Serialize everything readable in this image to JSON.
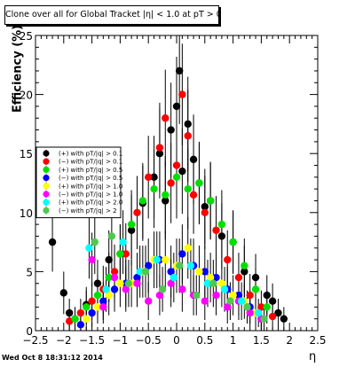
{
  "chart_data": {
    "type": "scatter",
    "title": "Clone  over all for Global Tracket |η| < 1.0 at pT > 0.11",
    "xlabel": "η",
    "ylabel": "Efficiency (%)",
    "xlim": [
      -2.5,
      2.5
    ],
    "ylim": [
      0,
      25
    ],
    "grid": false,
    "legend_position": "left-middle",
    "x_ticks": [
      -2.5,
      -2,
      -1.5,
      -1,
      -0.5,
      0,
      0.5,
      1,
      1.5,
      2,
      2.5
    ],
    "x_tick_labels": [
      "−2.5",
      "−2",
      "−1.5",
      "−1",
      "−0.5",
      "0",
      "0.5",
      "1",
      "1.5",
      "2",
      "2.5"
    ],
    "y_ticks": [
      0,
      5,
      10,
      15,
      20,
      25
    ],
    "y_tick_labels": [
      "0",
      "5",
      "10",
      "15",
      "20",
      "25"
    ],
    "datestamp": "Wed Oct  8 18:31:12 2014",
    "series": [
      {
        "name": "(+) with pT/|q| > 0.1",
        "color": "#000000",
        "x": [
          -2.2,
          -2.0,
          -1.9,
          -1.8,
          -1.6,
          -1.4,
          -1.2,
          -1.0,
          -0.8,
          -0.6,
          -0.4,
          -0.3,
          -0.2,
          -0.1,
          0.0,
          0.05,
          0.1,
          0.2,
          0.3,
          0.4,
          0.5,
          0.6,
          0.8,
          1.0,
          1.2,
          1.4,
          1.6,
          1.7,
          1.8,
          1.9
        ],
        "y": [
          7.5,
          3.2,
          1.5,
          1.0,
          2.2,
          4.0,
          6.0,
          6.5,
          8.5,
          10.8,
          13.0,
          15.0,
          11.0,
          17.0,
          19.0,
          22.0,
          13.5,
          17.5,
          14.5,
          12.5,
          10.5,
          11.0,
          8.0,
          7.5,
          5.0,
          4.5,
          3.0,
          2.5,
          1.5,
          1.0
        ],
        "yerr": [
          2.5,
          1.8,
          1.2,
          1.0,
          1.5,
          2.0,
          2.5,
          2.5,
          3.0,
          3.2,
          3.5,
          3.8,
          3.3,
          4.0,
          4.2,
          4.5,
          3.6,
          4.0,
          3.8,
          3.5,
          3.2,
          3.3,
          2.8,
          2.7,
          2.2,
          2.0,
          1.7,
          1.5,
          1.2,
          1.0
        ]
      },
      {
        "name": "(−) with pT/|q| > 0.1",
        "color": "#ff0000",
        "x": [
          -1.9,
          -1.7,
          -1.5,
          -1.3,
          -1.1,
          -0.9,
          -0.7,
          -0.5,
          -0.3,
          -0.2,
          -0.1,
          0.0,
          0.1,
          0.2,
          0.3,
          0.5,
          0.7,
          0.9,
          1.1,
          1.3,
          1.5,
          1.7
        ],
        "y": [
          0.8,
          1.5,
          2.5,
          3.5,
          5.0,
          6.5,
          10.0,
          13.0,
          15.5,
          18.0,
          12.5,
          14.0,
          20.0,
          16.5,
          11.5,
          10.0,
          8.5,
          6.0,
          4.5,
          3.0,
          2.0,
          1.2
        ],
        "yerr": [
          0.9,
          1.2,
          1.6,
          2.0,
          2.3,
          2.6,
          3.1,
          3.5,
          3.8,
          4.1,
          3.4,
          3.6,
          4.3,
          3.9,
          3.3,
          3.1,
          2.9,
          2.5,
          2.1,
          1.8,
          1.4,
          1.1
        ]
      },
      {
        "name": "(+) with pT/|q| > 0.5",
        "color": "#00e000",
        "x": [
          -1.8,
          -1.6,
          -1.4,
          -1.2,
          -1.0,
          -0.8,
          -0.6,
          -0.4,
          -0.2,
          0.0,
          0.2,
          0.4,
          0.6,
          0.8,
          1.0,
          1.2,
          1.4,
          1.6
        ],
        "y": [
          1.0,
          2.0,
          3.0,
          4.5,
          6.5,
          9.0,
          11.0,
          12.0,
          11.5,
          13.0,
          12.0,
          12.5,
          11.0,
          9.0,
          7.5,
          5.5,
          3.5,
          2.0
        ],
        "yerr": [
          1.0,
          1.4,
          1.7,
          2.1,
          2.5,
          2.9,
          3.2,
          3.3,
          3.3,
          3.5,
          3.4,
          3.4,
          3.2,
          2.9,
          2.6,
          2.3,
          1.8,
          1.4
        ]
      },
      {
        "name": "(−) with pT/|q| > 0.5",
        "color": "#0000ff",
        "x": [
          -1.7,
          -1.5,
          -1.3,
          -1.1,
          -0.9,
          -0.7,
          -0.5,
          -0.3,
          -0.1,
          0.1,
          0.3,
          0.5,
          0.7,
          0.9,
          1.1,
          1.3,
          1.5
        ],
        "y": [
          0.5,
          1.5,
          2.5,
          3.5,
          4.0,
          4.5,
          5.5,
          6.0,
          5.0,
          6.5,
          5.5,
          5.0,
          4.5,
          3.5,
          3.0,
          2.0,
          1.0
        ],
        "yerr": [
          0.8,
          1.2,
          1.6,
          1.9,
          2.0,
          2.1,
          2.3,
          2.4,
          2.2,
          2.5,
          2.3,
          2.2,
          2.1,
          1.9,
          1.7,
          1.4,
          1.0
        ]
      },
      {
        "name": "(+) with pT/|q| > 1.0",
        "color": "#ffff00",
        "x": [
          -1.6,
          -1.4,
          -1.2,
          -1.0,
          -0.8,
          -0.6,
          -0.4,
          -0.2,
          0.0,
          0.2,
          0.4,
          0.6,
          0.8,
          1.0,
          1.2,
          1.4
        ],
        "y": [
          1.0,
          2.0,
          3.0,
          4.0,
          4.0,
          5.0,
          6.0,
          6.0,
          5.5,
          7.0,
          5.0,
          4.5,
          4.0,
          3.0,
          2.5,
          1.5
        ],
        "yerr": [
          1.0,
          1.4,
          1.7,
          2.0,
          2.0,
          2.2,
          2.4,
          2.4,
          2.3,
          2.6,
          2.2,
          2.1,
          2.0,
          1.7,
          1.5,
          1.2
        ]
      },
      {
        "name": "(−) with pT/|q| > 1.0",
        "color": "#ff00ff",
        "x": [
          -1.5,
          -1.3,
          -1.1,
          -0.9,
          -0.7,
          -0.5,
          -0.3,
          -0.1,
          0.1,
          0.3,
          0.5,
          0.7,
          0.9,
          1.1,
          1.3,
          1.5
        ],
        "y": [
          6.0,
          2.0,
          4.5,
          3.5,
          4.0,
          2.5,
          3.0,
          4.0,
          3.5,
          3.0,
          2.5,
          3.0,
          2.0,
          2.5,
          1.5,
          1.0
        ],
        "yerr": [
          2.3,
          1.4,
          2.1,
          1.9,
          2.0,
          1.6,
          1.7,
          2.0,
          1.9,
          1.7,
          1.6,
          1.7,
          1.4,
          1.6,
          1.2,
          1.0
        ]
      },
      {
        "name": "(+) with pT/|q| > 2.0",
        "color": "#00ffff",
        "x": [
          -1.55,
          -1.25,
          -0.95,
          -0.65,
          -0.35,
          -0.05,
          0.25,
          0.55,
          0.85,
          1.15,
          1.45
        ],
        "y": [
          7.0,
          3.5,
          7.5,
          5.0,
          6.0,
          4.5,
          5.5,
          4.0,
          3.5,
          2.5,
          1.5
        ],
        "yerr": [
          2.6,
          1.9,
          2.7,
          2.2,
          2.4,
          2.1,
          2.3,
          2.0,
          1.9,
          1.6,
          1.2
        ]
      },
      {
        "name": "(−) with pT/|q| > 2",
        "color": "#50c850",
        "x": [
          -1.45,
          -1.15,
          -0.85,
          -0.55,
          -0.25,
          0.05,
          0.35,
          0.65,
          0.95,
          1.25,
          1.55
        ],
        "y": [
          7.5,
          8.0,
          4.0,
          5.0,
          3.5,
          5.5,
          3.0,
          4.0,
          2.5,
          2.0,
          1.0
        ],
        "yerr": [
          2.7,
          2.8,
          2.0,
          2.2,
          1.9,
          2.3,
          1.7,
          2.0,
          1.6,
          1.4,
          1.0
        ]
      }
    ]
  }
}
